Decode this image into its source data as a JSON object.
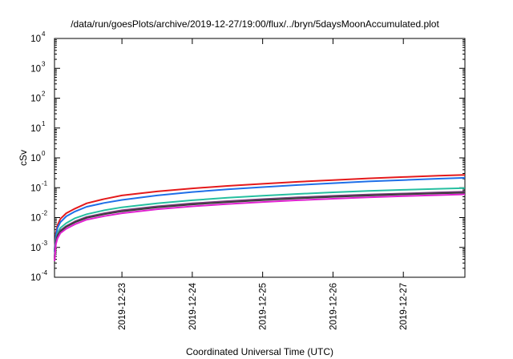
{
  "chart_data": {
    "type": "line",
    "title": "/data/run/goesPlots/archive/2019-12-27/19:00/flux/../bryn/5daysMoonAccumulated.plot",
    "xlabel": "Coordinated Universal Time (UTC)",
    "ylabel": "cSv",
    "yscale": "log",
    "ylim": [
      0.0001,
      10000
    ],
    "xlim": [
      "2019-12-22T01:00",
      "2019-12-27T21:00"
    ],
    "grid": false,
    "legend": "none",
    "x_ticks": [
      "2019-12-23",
      "2019-12-24",
      "2019-12-25",
      "2019-12-26",
      "2019-12-27"
    ],
    "y_ticks": [
      {
        "value": 0.0001,
        "base": "10",
        "exp": "-4"
      },
      {
        "value": 0.001,
        "base": "10",
        "exp": "-3"
      },
      {
        "value": 0.01,
        "base": "10",
        "exp": "-2"
      },
      {
        "value": 0.1,
        "base": "10",
        "exp": "-1"
      },
      {
        "value": 1,
        "base": "10",
        "exp": "0"
      },
      {
        "value": 10,
        "base": "10",
        "exp": "1"
      },
      {
        "value": 100,
        "base": "10",
        "exp": "2"
      },
      {
        "value": 1000,
        "base": "10",
        "exp": "3"
      },
      {
        "value": 10000,
        "base": "10",
        "exp": "4"
      }
    ],
    "x": [
      "2019-12-22T01:00",
      "2019-12-22T01:30",
      "2019-12-22T02:00",
      "2019-12-22T03:00",
      "2019-12-22T05:00",
      "2019-12-22T08:00",
      "2019-12-22T12:00",
      "2019-12-22T18:00",
      "2019-12-23T00:00",
      "2019-12-23T12:00",
      "2019-12-24T00:00",
      "2019-12-24T12:00",
      "2019-12-25T00:00",
      "2019-12-25T12:00",
      "2019-12-26T00:00",
      "2019-12-26T12:00",
      "2019-12-27T00:00",
      "2019-12-27T12:00",
      "2019-12-27T21:00"
    ],
    "series": [
      {
        "color": "#e41a1c",
        "values": [
          0.0008,
          0.003,
          0.0055,
          0.009,
          0.014,
          0.02,
          0.03,
          0.042,
          0.055,
          0.075,
          0.095,
          0.115,
          0.135,
          0.158,
          0.18,
          0.205,
          0.228,
          0.252,
          0.27
        ]
      },
      {
        "color": "#1f6fe8",
        "values": [
          0.0007,
          0.0025,
          0.0045,
          0.007,
          0.011,
          0.016,
          0.023,
          0.031,
          0.039,
          0.055,
          0.072,
          0.088,
          0.105,
          0.123,
          0.142,
          0.162,
          0.18,
          0.2,
          0.215
        ]
      },
      {
        "color": "#26bfa0",
        "values": [
          0.0005,
          0.0018,
          0.003,
          0.0045,
          0.0065,
          0.0095,
          0.013,
          0.0175,
          0.022,
          0.03,
          0.038,
          0.046,
          0.054,
          0.062,
          0.07,
          0.078,
          0.085,
          0.092,
          0.097
        ]
      },
      {
        "color": "#7b3f7f",
        "values": [
          0.00045,
          0.0016,
          0.0026,
          0.0037,
          0.0052,
          0.0075,
          0.0105,
          0.014,
          0.0175,
          0.0238,
          0.0298,
          0.0355,
          0.0415,
          0.0475,
          0.0535,
          0.059,
          0.064,
          0.0695,
          0.073
        ]
      },
      {
        "color": "#3d3d3d",
        "values": [
          0.0004,
          0.0015,
          0.0024,
          0.0034,
          0.0049,
          0.007,
          0.0098,
          0.013,
          0.0162,
          0.022,
          0.0275,
          0.033,
          0.0385,
          0.044,
          0.0495,
          0.0548,
          0.06,
          0.065,
          0.068
        ]
      },
      {
        "color": "#e020d0",
        "values": [
          0.00035,
          0.0013,
          0.002,
          0.003,
          0.0042,
          0.006,
          0.0085,
          0.0112,
          0.014,
          0.019,
          0.0238,
          0.0285,
          0.0332,
          0.038,
          0.0428,
          0.0475,
          0.052,
          0.0565,
          0.06
        ]
      }
    ]
  }
}
